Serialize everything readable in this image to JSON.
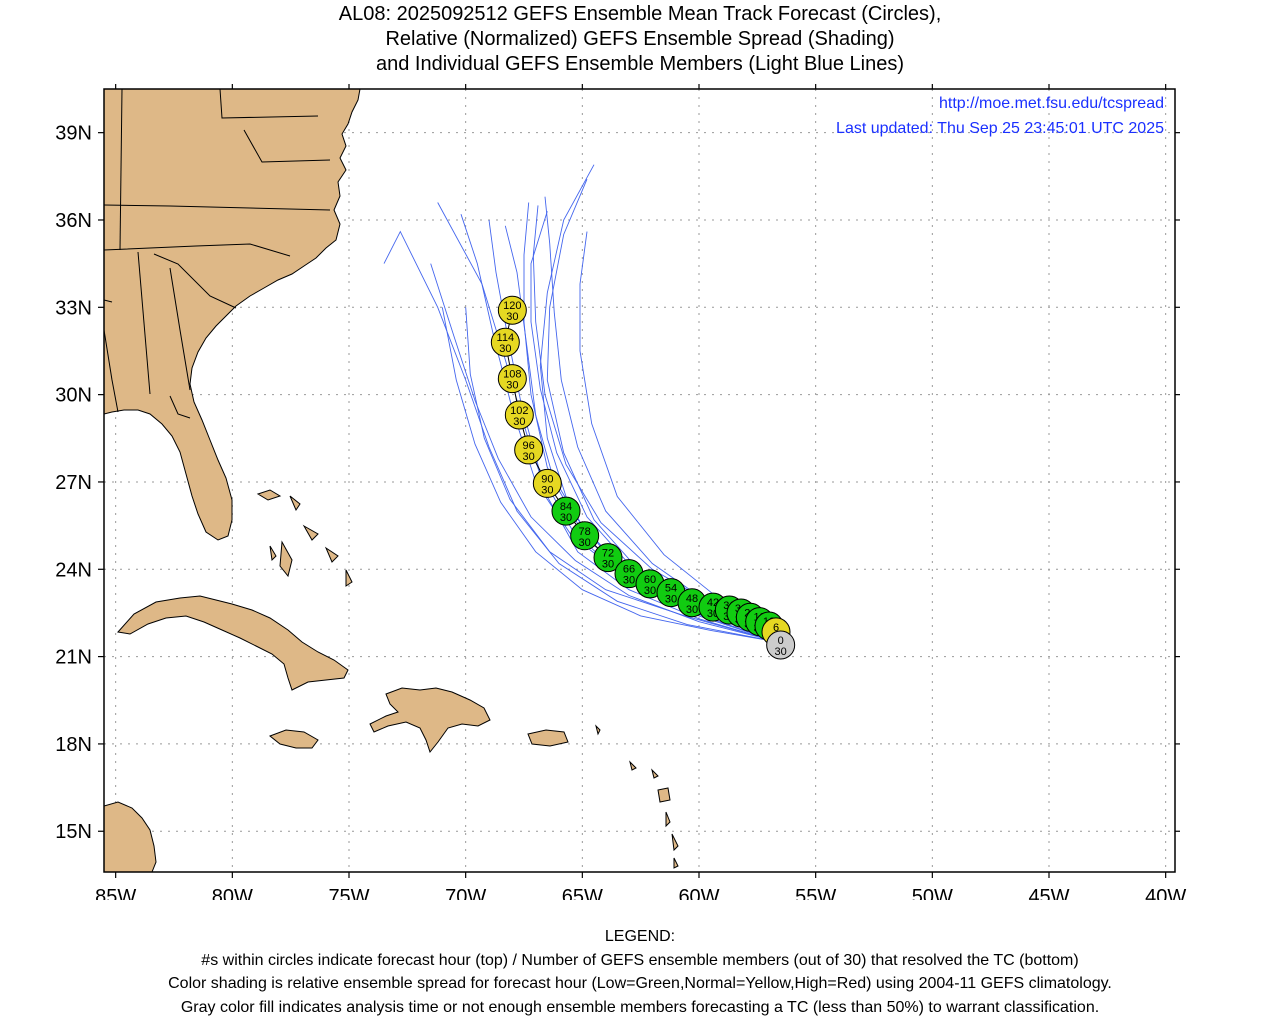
{
  "title": {
    "line1": "AL08: 2025092512 GEFS Ensemble Mean Track Forecast (Circles),",
    "line2": "Relative (Normalized) GEFS Ensemble Spread (Shading)",
    "line3": "and Individual GEFS Ensemble Members (Light Blue Lines)"
  },
  "header": {
    "url": "http://moe.met.fsu.edu/tcspread",
    "updated": "Last updated: Thu Sep 25 23:45:01 UTC 2025"
  },
  "axes": {
    "lon_ticks": [
      "85W",
      "80W",
      "75W",
      "70W",
      "65W",
      "60W",
      "55W",
      "50W",
      "45W",
      "40W"
    ],
    "lat_ticks": [
      "39N",
      "36N",
      "33N",
      "30N",
      "27N",
      "24N",
      "21N",
      "18N",
      "15N"
    ],
    "lon_range": [
      -85.5,
      -39.6
    ],
    "lat_range": [
      13.6,
      40.5
    ],
    "grid": "dotted"
  },
  "colors": {
    "land": "#deb887",
    "member_track": "#4466ee",
    "low_spread": "#11cc11",
    "normal_spread": "#e6d822",
    "analysis_gray": "#cccccc"
  },
  "track": [
    {
      "hour": "0",
      "members": "30",
      "lon": -56.5,
      "lat": 21.4,
      "spread": "gray"
    },
    {
      "hour": "6",
      "members": "30",
      "lon": -56.7,
      "lat": 21.85,
      "spread": "normal"
    },
    {
      "hour": "12",
      "members": "30",
      "lon": -57.0,
      "lat": 22.05,
      "spread": "low"
    },
    {
      "hour": "18",
      "members": "30",
      "lon": -57.4,
      "lat": 22.2,
      "spread": "low"
    },
    {
      "hour": "24",
      "members": "30",
      "lon": -57.8,
      "lat": 22.35,
      "spread": "low"
    },
    {
      "hour": "30",
      "members": "30",
      "lon": -58.2,
      "lat": 22.5,
      "spread": "low"
    },
    {
      "hour": "36",
      "members": "30",
      "lon": -58.7,
      "lat": 22.6,
      "spread": "low"
    },
    {
      "hour": "42",
      "members": "30",
      "lon": -59.4,
      "lat": 22.7,
      "spread": "low"
    },
    {
      "hour": "48",
      "members": "30",
      "lon": -60.3,
      "lat": 22.85,
      "spread": "low"
    },
    {
      "hour": "54",
      "members": "30",
      "lon": -61.2,
      "lat": 23.2,
      "spread": "low"
    },
    {
      "hour": "60",
      "members": "30",
      "lon": -62.1,
      "lat": 23.5,
      "spread": "low"
    },
    {
      "hour": "66",
      "members": "30",
      "lon": -63.0,
      "lat": 23.85,
      "spread": "low"
    },
    {
      "hour": "72",
      "members": "30",
      "lon": -63.9,
      "lat": 24.4,
      "spread": "low"
    },
    {
      "hour": "78",
      "members": "30",
      "lon": -64.9,
      "lat": 25.15,
      "spread": "low"
    },
    {
      "hour": "84",
      "members": "30",
      "lon": -65.7,
      "lat": 26.0,
      "spread": "low"
    },
    {
      "hour": "90",
      "members": "30",
      "lon": -66.5,
      "lat": 26.95,
      "spread": "normal"
    },
    {
      "hour": "96",
      "members": "30",
      "lon": -67.3,
      "lat": 28.1,
      "spread": "normal"
    },
    {
      "hour": "102",
      "members": "30",
      "lon": -67.7,
      "lat": 29.3,
      "spread": "normal"
    },
    {
      "hour": "108",
      "members": "30",
      "lon": -68.0,
      "lat": 30.55,
      "spread": "normal"
    },
    {
      "hour": "114",
      "members": "30",
      "lon": -68.3,
      "lat": 31.8,
      "spread": "normal"
    },
    {
      "hour": "120",
      "members": "30",
      "lon": -68.0,
      "lat": 32.9,
      "spread": "normal"
    }
  ],
  "members": [
    [
      [
        -56.6,
        21.5
      ],
      [
        -60,
        22.4
      ],
      [
        -63,
        23.6
      ],
      [
        -65.5,
        25.2
      ],
      [
        -67,
        27
      ],
      [
        -68,
        29.5
      ],
      [
        -68.8,
        32
      ],
      [
        -69.5,
        34.5
      ],
      [
        -70.2,
        36.2
      ]
    ],
    [
      [
        -56.6,
        21.5
      ],
      [
        -60,
        22.6
      ],
      [
        -63,
        23.8
      ],
      [
        -65,
        25.5
      ],
      [
        -66.5,
        27.5
      ],
      [
        -67.2,
        30
      ],
      [
        -67.5,
        32.5
      ],
      [
        -67.5,
        34.8
      ],
      [
        -67.3,
        36.6
      ]
    ],
    [
      [
        -56.6,
        21.5
      ],
      [
        -59.8,
        22.5
      ],
      [
        -62.5,
        23.9
      ],
      [
        -64.5,
        25.7
      ],
      [
        -65.8,
        28
      ],
      [
        -66.5,
        30.5
      ],
      [
        -66.4,
        33
      ],
      [
        -65.8,
        35.5
      ],
      [
        -64.8,
        37.4
      ]
    ],
    [
      [
        -56.6,
        21.5
      ],
      [
        -60,
        22.3
      ],
      [
        -63,
        23.3
      ],
      [
        -65.2,
        24.6
      ],
      [
        -66.5,
        26.5
      ],
      [
        -67.4,
        28.7
      ],
      [
        -68.3,
        31.2
      ],
      [
        -69.3,
        33.8
      ],
      [
        -71.2,
        36.6
      ]
    ],
    [
      [
        -56.6,
        21.5
      ],
      [
        -60.5,
        22.7
      ],
      [
        -63.5,
        24.1
      ],
      [
        -65.5,
        26
      ],
      [
        -66.5,
        28.5
      ],
      [
        -66.8,
        31
      ],
      [
        -66.5,
        33.5
      ],
      [
        -65.8,
        36
      ],
      [
        -64.5,
        37.9
      ]
    ],
    [
      [
        -56.6,
        21.5
      ],
      [
        -59,
        22.9
      ],
      [
        -61.5,
        24.5
      ],
      [
        -63.5,
        26.5
      ],
      [
        -64.6,
        29
      ],
      [
        -65.1,
        31.5
      ],
      [
        -65.1,
        33.8
      ],
      [
        -64.8,
        35.6
      ]
    ],
    [
      [
        -56.6,
        21.5
      ],
      [
        -60.5,
        22.1
      ],
      [
        -63.5,
        22.9
      ],
      [
        -66,
        24.2
      ],
      [
        -67.8,
        26
      ],
      [
        -69,
        28.2
      ],
      [
        -70,
        30.5
      ],
      [
        -71.2,
        33
      ],
      [
        -72.8,
        35.6
      ],
      [
        -73.5,
        34.5
      ]
    ],
    [
      [
        -56.6,
        21.5
      ],
      [
        -60,
        22.2
      ],
      [
        -63,
        23.1
      ],
      [
        -65.3,
        24.3
      ],
      [
        -67.2,
        25.8
      ],
      [
        -68.6,
        27.8
      ],
      [
        -69.6,
        29.8
      ],
      [
        -70.5,
        32
      ],
      [
        -71.5,
        34.5
      ]
    ],
    [
      [
        -56.6,
        21.5
      ],
      [
        -59.5,
        22.6
      ],
      [
        -62.5,
        23.6
      ],
      [
        -64.8,
        25
      ],
      [
        -66.2,
        27
      ],
      [
        -67,
        29.3
      ],
      [
        -67.4,
        31.8
      ],
      [
        -67.8,
        34.2
      ],
      [
        -68.3,
        35.8
      ]
    ],
    [
      [
        -56.6,
        21.5
      ],
      [
        -59.5,
        22.8
      ],
      [
        -62,
        24.2
      ],
      [
        -64,
        26
      ],
      [
        -65.2,
        28.2
      ],
      [
        -65.9,
        30.5
      ],
      [
        -66.2,
        32.8
      ],
      [
        -66.4,
        35.2
      ],
      [
        -66.6,
        36.8
      ]
    ],
    [
      [
        -56.6,
        21.5
      ],
      [
        -59.5,
        21.9
      ],
      [
        -62.5,
        22.4
      ],
      [
        -65,
        23.3
      ],
      [
        -67,
        24.6
      ],
      [
        -68.5,
        26.3
      ],
      [
        -69.6,
        28.3
      ],
      [
        -70.4,
        30.5
      ],
      [
        -71,
        33
      ]
    ],
    [
      [
        -56.6,
        21.5
      ],
      [
        -60.2,
        22.5
      ],
      [
        -63.2,
        23.7
      ],
      [
        -65.4,
        25.3
      ],
      [
        -66.8,
        27.3
      ],
      [
        -67.6,
        29.6
      ],
      [
        -68.2,
        32
      ],
      [
        -68.7,
        34.2
      ],
      [
        -69,
        36
      ]
    ],
    [
      [
        -56.6,
        21.5
      ],
      [
        -59.2,
        22.7
      ],
      [
        -62,
        24
      ],
      [
        -64.2,
        25.6
      ],
      [
        -65.7,
        27.6
      ],
      [
        -66.6,
        30
      ],
      [
        -67,
        32.5
      ],
      [
        -67.1,
        34.8
      ],
      [
        -66.9,
        36.5
      ]
    ],
    [
      [
        -56.6,
        21.5
      ],
      [
        -60.6,
        22.4
      ],
      [
        -64,
        23.3
      ],
      [
        -66.4,
        24.6
      ],
      [
        -68.1,
        26.4
      ],
      [
        -69.2,
        28.5
      ],
      [
        -69.8,
        30.7
      ],
      [
        -70,
        33
      ]
    ],
    [
      [
        -56.6,
        21.5
      ],
      [
        -60,
        22.6
      ],
      [
        -62.8,
        24
      ],
      [
        -64.8,
        25.8
      ],
      [
        -66.1,
        28
      ],
      [
        -66.8,
        30.2
      ],
      [
        -67.2,
        32.5
      ],
      [
        -67.2,
        34.5
      ],
      [
        -66.5,
        36.3
      ]
    ]
  ]
}
